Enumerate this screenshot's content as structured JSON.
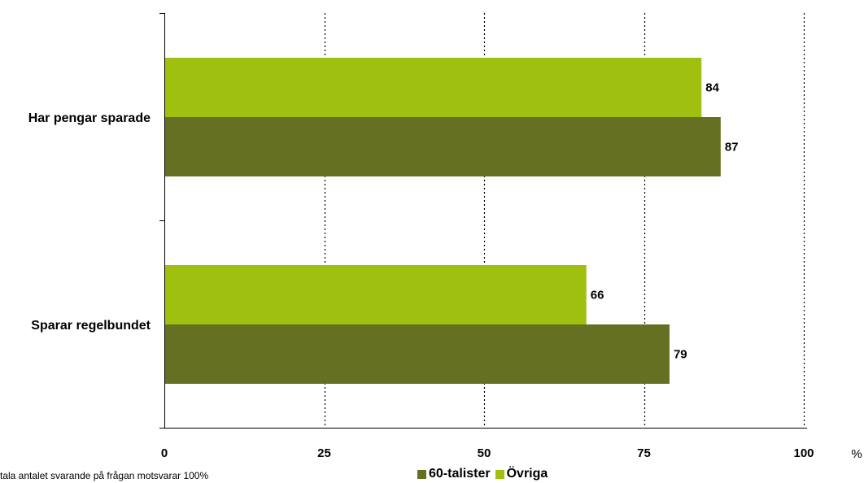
{
  "chart_data": {
    "type": "bar",
    "orientation": "horizontal",
    "categories": [
      "Har pengar sparade",
      "Sparar regelbundet"
    ],
    "series": [
      {
        "name": "Övriga",
        "values": [
          84,
          66
        ],
        "color": "#9fc00f"
      },
      {
        "name": "60-talister",
        "values": [
          87,
          79
        ],
        "color": "#667022"
      }
    ],
    "xlim": [
      0,
      100
    ],
    "xticks": [
      0,
      25,
      50,
      75,
      100
    ],
    "xtick_labels": [
      "0",
      "25",
      "50",
      "75",
      "100"
    ],
    "unit_label": "%",
    "grid": "vertical dotted",
    "legend_position": "bottom",
    "footnote": "tala antalet svarande på frågan motsvarar 100%"
  }
}
